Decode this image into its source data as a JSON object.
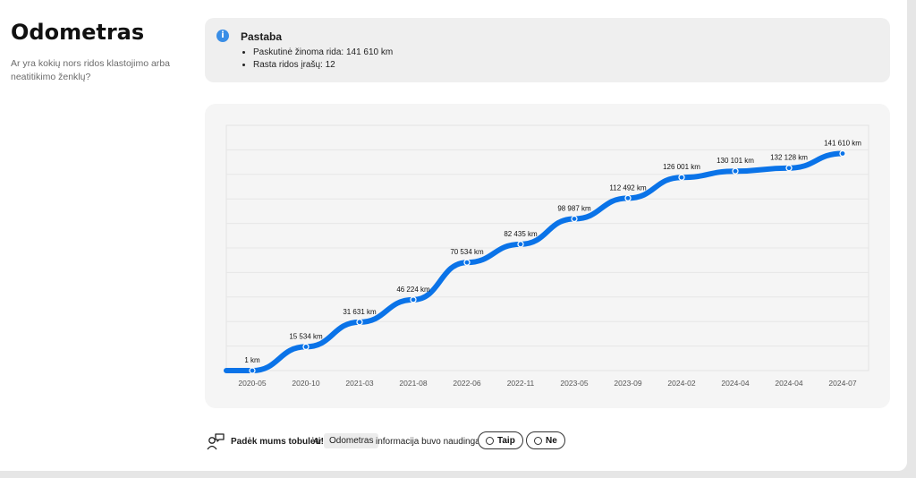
{
  "sidebar": {
    "title": "Odometras",
    "question": "Ar yra kokių nors ridos klastojimo arba neatitikimo ženklų?"
  },
  "note": {
    "icon": "info-icon",
    "title": "Pastaba",
    "items": [
      "Paskutinė žinoma rida: 141 610 km",
      "Rasta ridos įrašų: 12"
    ]
  },
  "chart_data": {
    "type": "line",
    "categories": [
      "2020-05",
      "2020-10",
      "2021-03",
      "2021-08",
      "2022-06",
      "2022-11",
      "2023-05",
      "2023-09",
      "2024-02",
      "2024-04",
      "2024-04",
      "2024-07"
    ],
    "series": [
      {
        "values": [
          1,
          15534,
          31631,
          46224,
          70534,
          82435,
          98987,
          112492,
          126001,
          130101,
          132128,
          141610
        ]
      }
    ],
    "labels": [
      "1 km",
      "15 534 km",
      "31 631 km",
      "46 224 km",
      "70 534 km",
      "82 435 km",
      "98 987 km",
      "112 492 km",
      "126 001 km",
      "130 101 km",
      "132 128 km",
      "141 610 km"
    ],
    "ylim": [
      0,
      160000
    ],
    "grid": true,
    "line_color": "#0a73e8"
  },
  "feedback": {
    "icon": "feedback-chat-icon",
    "bold": "Padėk mums tobulėti!",
    "ar": "Ar",
    "chip": "Odometras",
    "rest": "informacija buvo naudinga?",
    "yes": "Taip",
    "no": "Ne"
  }
}
